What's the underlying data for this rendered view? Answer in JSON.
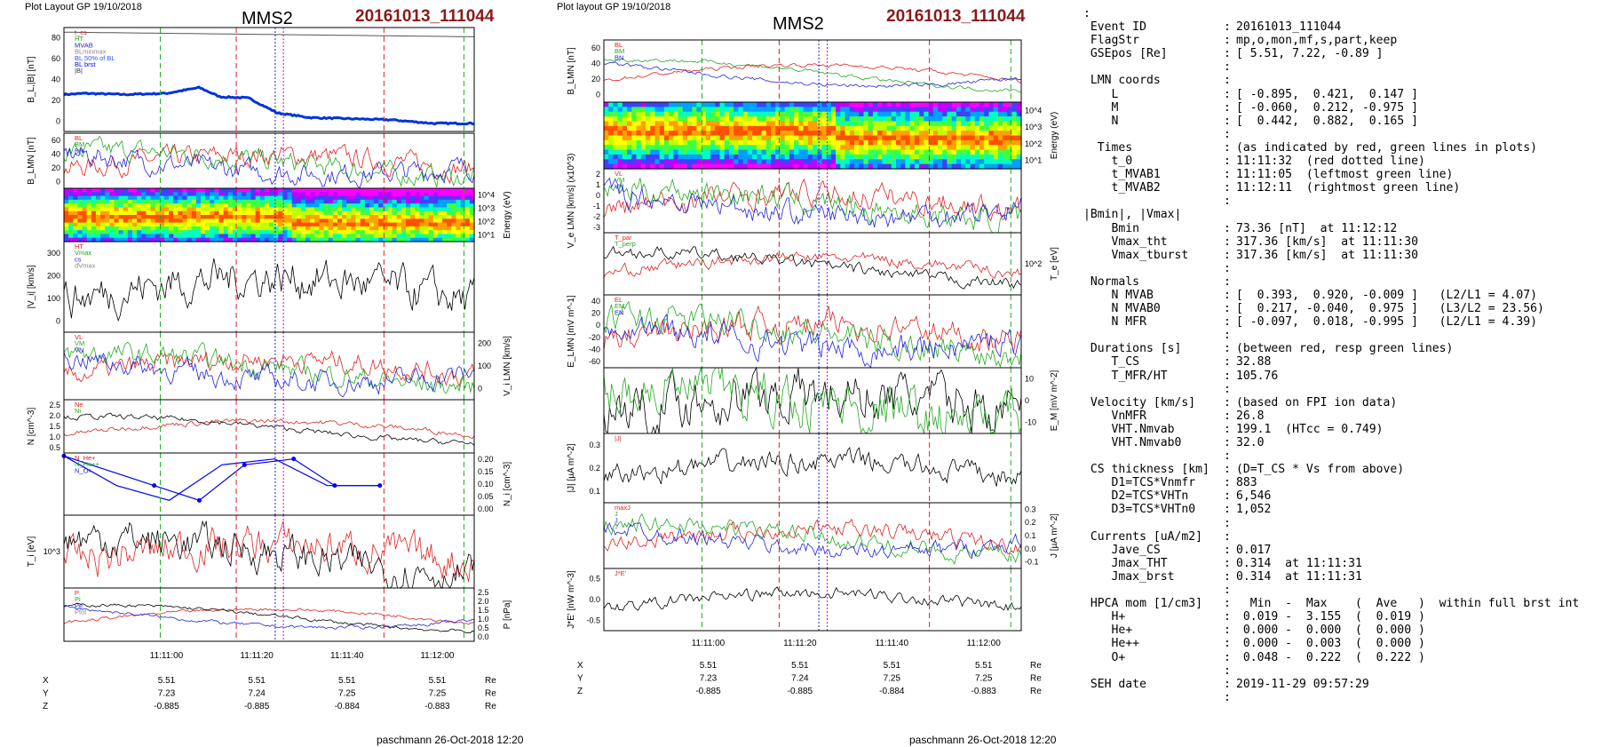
{
  "header": {
    "left_plot_label": "Plot Layout GP 19/10/2018",
    "right_plot_label": "Plot layout GP 19/10/2018",
    "spacecraft": "MMS2",
    "event_id": "20161013_111044",
    "footer": "paschmann 26-Oct-2018 12:20"
  },
  "chart_data": [
    {
      "type": "line",
      "title": "MMS2",
      "panels": [
        {
          "ylabel": "B_L,|B| [nT]",
          "yticks": [
            "0",
            "20",
            "40",
            "60",
            "80"
          ],
          "legend": [
            "t_cs",
            "HT",
            "MVAB",
            "BLminmax",
            "BL 50% of BL",
            "BL brst",
            "|B|"
          ],
          "series": [
            {
              "name": "BL brst",
              "x": [
                0,
                0.05,
                0.15,
                0.25,
                0.33,
                0.38,
                0.45,
                0.52,
                0.6,
                0.7,
                0.8,
                0.9,
                1.0
              ],
              "values": [
                24,
                25,
                24,
                25,
                30,
                22,
                21,
                8,
                4,
                3,
                2,
                -1,
                -1
              ]
            },
            {
              "name": "|B|",
              "x": [
                0,
                0.5,
                1.0
              ],
              "values": [
                78,
                76,
                74
              ]
            }
          ]
        },
        {
          "ylabel": "B_LMN [nT]",
          "yticks": [
            "0",
            "20",
            "40",
            "60"
          ],
          "legend": [
            "BL",
            "BM",
            "BN"
          ]
        },
        {
          "ylabel": "Energy (eV)",
          "yticks": [
            "10^1",
            "10^2",
            "10^3",
            "10^4"
          ]
        },
        {
          "ylabel": "|V_i| [km/s]",
          "yticks": [
            "0",
            "100",
            "200",
            "300"
          ],
          "legend": [
            "HT",
            "Vmax",
            "cs",
            "dVmax"
          ]
        },
        {
          "ylabel": "V_i LMN [km/s]",
          "yticks": [
            "0",
            "100",
            "200"
          ],
          "legend": [
            "VL",
            "VM",
            "VN"
          ]
        },
        {
          "ylabel": "N [cm^-3]",
          "yticks": [
            "0.5",
            "1.0",
            "1.5",
            "2.0",
            "2.5"
          ],
          "legend": [
            "Ne",
            "Ni"
          ]
        },
        {
          "ylabel": "N_i [cm^-3]",
          "yticks": [
            "0.00",
            "0.05",
            "0.10",
            "0.15",
            "0.20"
          ],
          "legend": [
            "N_He+",
            "N_He++",
            "N_O+"
          ],
          "series": [
            {
              "name": "N_O+",
              "x": [
                0,
                0.22,
                0.33,
                0.44,
                0.56,
                0.66,
                0.77
              ],
              "values": [
                0.2,
                0.1,
                0.05,
                0.17,
                0.19,
                0.1,
                0.1
              ]
            }
          ]
        },
        {
          "ylabel": "T_i [eV]",
          "yticks": [
            "10^3"
          ]
        },
        {
          "ylabel": "P [nPa]",
          "yticks": [
            "0.0",
            "0.5",
            "1.0",
            "1.5",
            "2.0",
            "2.5"
          ],
          "legend": [
            "P",
            "Pi",
            "Pe",
            "Ptot"
          ]
        }
      ],
      "xticks": [
        "11:11:00",
        "11:11:20",
        "11:11:40",
        "11:12:00"
      ],
      "ephem": {
        "rows": [
          {
            "label": "X",
            "values": [
              "5.51",
              "5.51",
              "5.51",
              "5.51"
            ],
            "unit": "Re"
          },
          {
            "label": "Y",
            "values": [
              "7.23",
              "7.24",
              "7.25",
              "7.25"
            ],
            "unit": "Re"
          },
          {
            "label": "Z",
            "values": [
              "-0.885",
              "-0.885",
              "-0.884",
              "-0.883"
            ],
            "unit": "Re"
          }
        ]
      }
    },
    {
      "type": "line",
      "title": "MMS2",
      "panels": [
        {
          "ylabel": "B_LMN [nT]",
          "yticks": [
            "0",
            "20",
            "40",
            "60"
          ],
          "legend": [
            "BL",
            "BM",
            "BN"
          ]
        },
        {
          "ylabel": "Energy (eV)",
          "yticks": [
            "10^1",
            "10^2",
            "10^3",
            "10^4"
          ]
        },
        {
          "ylabel": "V_e LMN [km/s] (x10^3)",
          "yticks": [
            "-3",
            "-2",
            "-1",
            "0",
            "1",
            "2"
          ],
          "legend": [
            "VL",
            "VM",
            "VN"
          ]
        },
        {
          "ylabel": "T_e [eV]",
          "yticks": [
            "10^2"
          ],
          "legend": [
            "T_par",
            "T_perp"
          ]
        },
        {
          "ylabel": "E_LMN [mV m^-1]",
          "yticks": [
            "-60",
            "-40",
            "-20",
            "0",
            "20",
            "40"
          ],
          "legend": [
            "EL",
            "EM",
            "EN"
          ]
        },
        {
          "ylabel": "E_M [mV m^-2]",
          "yticks": [
            "-10",
            "0",
            "10"
          ]
        },
        {
          "ylabel": "|J| [µA m^-2]",
          "yticks": [
            "0.1",
            "0.2",
            "0.3"
          ],
          "legend": [
            "|J|"
          ]
        },
        {
          "ylabel": "J [µA m^-2]",
          "yticks": [
            "-0.1",
            "0.0",
            "0.1",
            "0.2",
            "0.3"
          ],
          "legend": [
            "maxJ",
            "J",
            "J",
            "J"
          ]
        },
        {
          "ylabel": "J*E' [nW m^-3]",
          "yticks": [
            "-0.5",
            "0.0",
            "0.5"
          ],
          "legend": [
            "J*E'"
          ]
        }
      ],
      "xticks": [
        "11:11:00",
        "11:11:20",
        "11:11:40",
        "11:12:00"
      ],
      "ephem": {
        "rows": [
          {
            "label": "X",
            "values": [
              "5.51",
              "5.51",
              "5.51",
              "5.51"
            ],
            "unit": "Re"
          },
          {
            "label": "Y",
            "values": [
              "7.23",
              "7.24",
              "7.25",
              "7.25"
            ],
            "unit": "Re"
          },
          {
            "label": "Z",
            "values": [
              "-0.885",
              "-0.885",
              "-0.884",
              "-0.883"
            ],
            "unit": "Re"
          }
        ]
      }
    }
  ],
  "info": {
    "lines": [
      {
        "k": ":",
        "c": "",
        "v": ""
      },
      {
        "k": " Event ID",
        "c": ":",
        "v": "20161013_111044"
      },
      {
        "k": " FlagStr",
        "c": ":",
        "v": "mp,o,mon,mf,s,part,keep"
      },
      {
        "k": " GSEpos [Re]",
        "c": ":",
        "v": "[ 5.51, 7.22, -0.89 ]"
      },
      {
        "k": "",
        "c": ":",
        "v": ""
      },
      {
        "k": " LMN coords",
        "c": ":",
        "v": ""
      },
      {
        "k": "    L",
        "c": ":",
        "v": "[ -0.895,  0.421,  0.147 ]"
      },
      {
        "k": "    M",
        "c": ":",
        "v": "[ -0.060,  0.212, -0.975 ]"
      },
      {
        "k": "    N",
        "c": ":",
        "v": "[  0.442,  0.882,  0.165 ]"
      },
      {
        "k": "",
        "c": ":",
        "v": ""
      },
      {
        "k": "  Times",
        "c": ":",
        "v": "(as indicated by red, green lines in plots)"
      },
      {
        "k": "    t_0",
        "c": ":",
        "v": "11:11:32  (red dotted line)"
      },
      {
        "k": "    t_MVAB1",
        "c": ":",
        "v": "11:11:05  (leftmost green line)"
      },
      {
        "k": "    t_MVAB2",
        "c": ":",
        "v": "11:12:11  (rightmost green line)"
      },
      {
        "k": "",
        "c": ":",
        "v": ""
      },
      {
        "k": "|Bmin|, |Vmax|",
        "c": "",
        "v": ""
      },
      {
        "k": "    Bmin",
        "c": ":",
        "v": "73.36 [nT]  at 11:12:12"
      },
      {
        "k": "    Vmax_tht",
        "c": ":",
        "v": "317.36 [km/s]  at 11:11:30"
      },
      {
        "k": "    Vmax_tburst",
        "c": ":",
        "v": "317.36 [km/s]  at 11:11:30"
      },
      {
        "k": "",
        "c": ":",
        "v": ""
      },
      {
        "k": " Normals",
        "c": ":",
        "v": ""
      },
      {
        "k": "    N MVAB",
        "c": ":",
        "v": "[  0.393,  0.920, -0.009 ]   (L2/L1 = 4.07)"
      },
      {
        "k": "    N MVAB0",
        "c": ":",
        "v": "[  0.217, -0.040,  0.975 ]   (L3/L2 = 23.56)"
      },
      {
        "k": "    N MFR",
        "c": ":",
        "v": "[ -0.097,  0.018, -0.995 ]   (L2/L1 = 4.39)"
      },
      {
        "k": "",
        "c": ":",
        "v": ""
      },
      {
        "k": " Durations [s]",
        "c": ":",
        "v": "(between red, resp green lines)"
      },
      {
        "k": "    T_CS",
        "c": ":",
        "v": "32.88"
      },
      {
        "k": "    T_MFR/HT",
        "c": ":",
        "v": "105.76"
      },
      {
        "k": "",
        "c": ":",
        "v": ""
      },
      {
        "k": " Velocity [km/s]",
        "c": ":",
        "v": "(based on FPI ion data)"
      },
      {
        "k": "    VnMFR",
        "c": ":",
        "v": "26.8"
      },
      {
        "k": "    VHT.Nmvab",
        "c": ":",
        "v": "199.1  (HTcc = 0.749)"
      },
      {
        "k": "    VHT.Nmvab0",
        "c": ":",
        "v": "32.0"
      },
      {
        "k": "",
        "c": ":",
        "v": ""
      },
      {
        "k": " CS thickness [km]",
        "c": ":",
        "v": "(D=T_CS * Vs from above)"
      },
      {
        "k": "    D1=TCS*Vnmfr",
        "c": ":",
        "v": "883"
      },
      {
        "k": "    D2=TCS*VHTn",
        "c": ":",
        "v": "6,546"
      },
      {
        "k": "    D3=TCS*VHTn0",
        "c": ":",
        "v": "1,052"
      },
      {
        "k": "",
        "c": ":",
        "v": ""
      },
      {
        "k": " Currents [uA/m2]",
        "c": ":",
        "v": ""
      },
      {
        "k": "    Jave_CS",
        "c": ":",
        "v": "0.017"
      },
      {
        "k": "    Jmax_THT",
        "c": ":",
        "v": "0.314  at 11:11:31"
      },
      {
        "k": "    Jmax_brst",
        "c": ":",
        "v": "0.314  at 11:11:31"
      },
      {
        "k": "",
        "c": ":",
        "v": ""
      },
      {
        "k": " HPCA mom [1/cm3]",
        "c": ":",
        "v": "  Min  -  Max    (  Ave   )  within full brst int"
      },
      {
        "k": "    H+",
        "c": ":",
        "v": " 0.019 -  3.155  (  0.019 )"
      },
      {
        "k": "    He+",
        "c": ":",
        "v": " 0.000 -  0.000  (  0.000 )"
      },
      {
        "k": "    He++",
        "c": ":",
        "v": " 0.000 -  0.003  (  0.000 )"
      },
      {
        "k": "    O+",
        "c": ":",
        "v": " 0.048 -  0.222  (  0.222 )"
      },
      {
        "k": "",
        "c": ":",
        "v": ""
      },
      {
        "k": " SEH date",
        "c": ":",
        "v": "2019-11-29 09:57:29"
      },
      {
        "k": "",
        "c": ":",
        "v": ""
      }
    ]
  }
}
